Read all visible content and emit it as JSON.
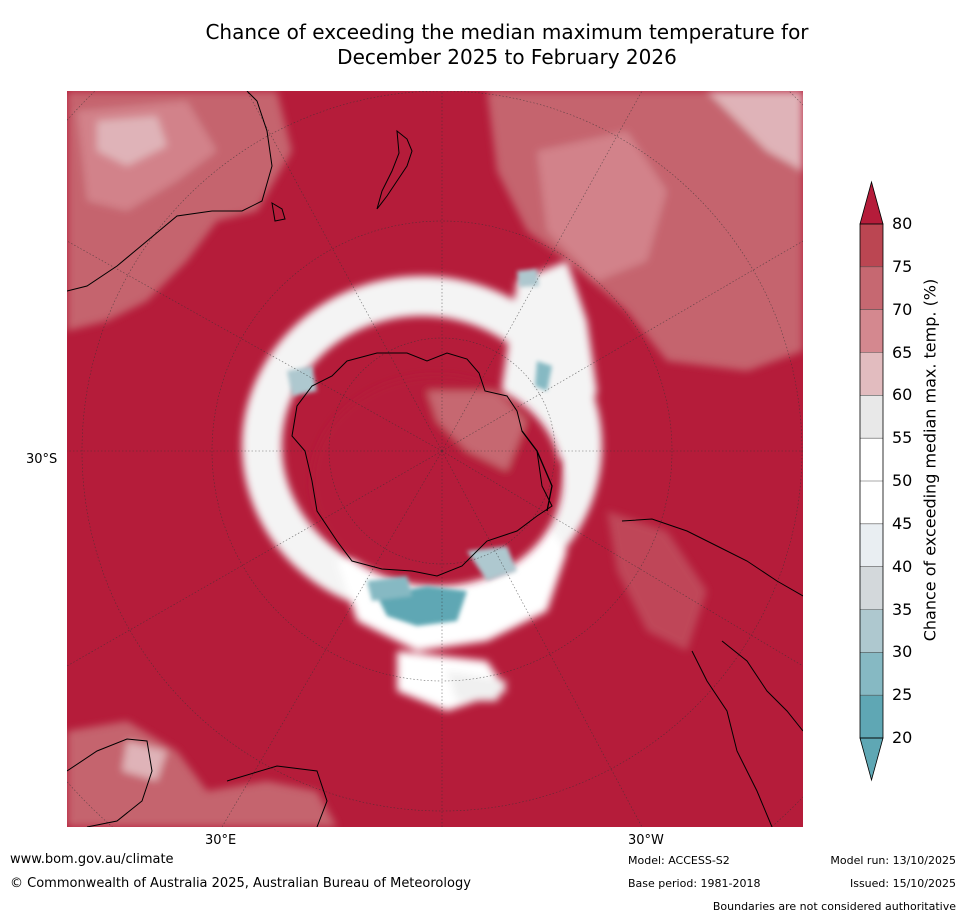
{
  "title_line1": "Chance of exceeding the median maximum temperature for",
  "title_line2": "December 2025 to February 2026",
  "ticks": {
    "lat_left": "30°S",
    "lon_bottom_left": "30°E",
    "lon_bottom_right": "30°W"
  },
  "colorbar": {
    "label": "Chance of exceeding median max. temp. (%)",
    "ticks": [
      "20",
      "25",
      "30",
      "35",
      "40",
      "45",
      "50",
      "55",
      "60",
      "65",
      "70",
      "75",
      "80"
    ],
    "colors": [
      "#5fa7b4",
      "#86b9c3",
      "#aec8cf",
      "#d3d8db",
      "#e9eef2",
      "#ffffff",
      "#ffffff",
      "#e8e8e8",
      "#e2bcbf",
      "#d4888f",
      "#c66871",
      "#bb4652",
      "#b51c3a"
    ]
  },
  "footer": {
    "website": "www.bom.gov.au/climate",
    "copyright": "© Commonwealth of Australia 2025, Australian Bureau of Meteorology",
    "model": "Model: ACCESS-S2",
    "base_period": "Base period: 1981-2018",
    "model_run": "Model run: 13/10/2025",
    "issued": "Issued: 15/10/2025",
    "disclaimer": "Boundaries are not considered authoritative"
  }
}
